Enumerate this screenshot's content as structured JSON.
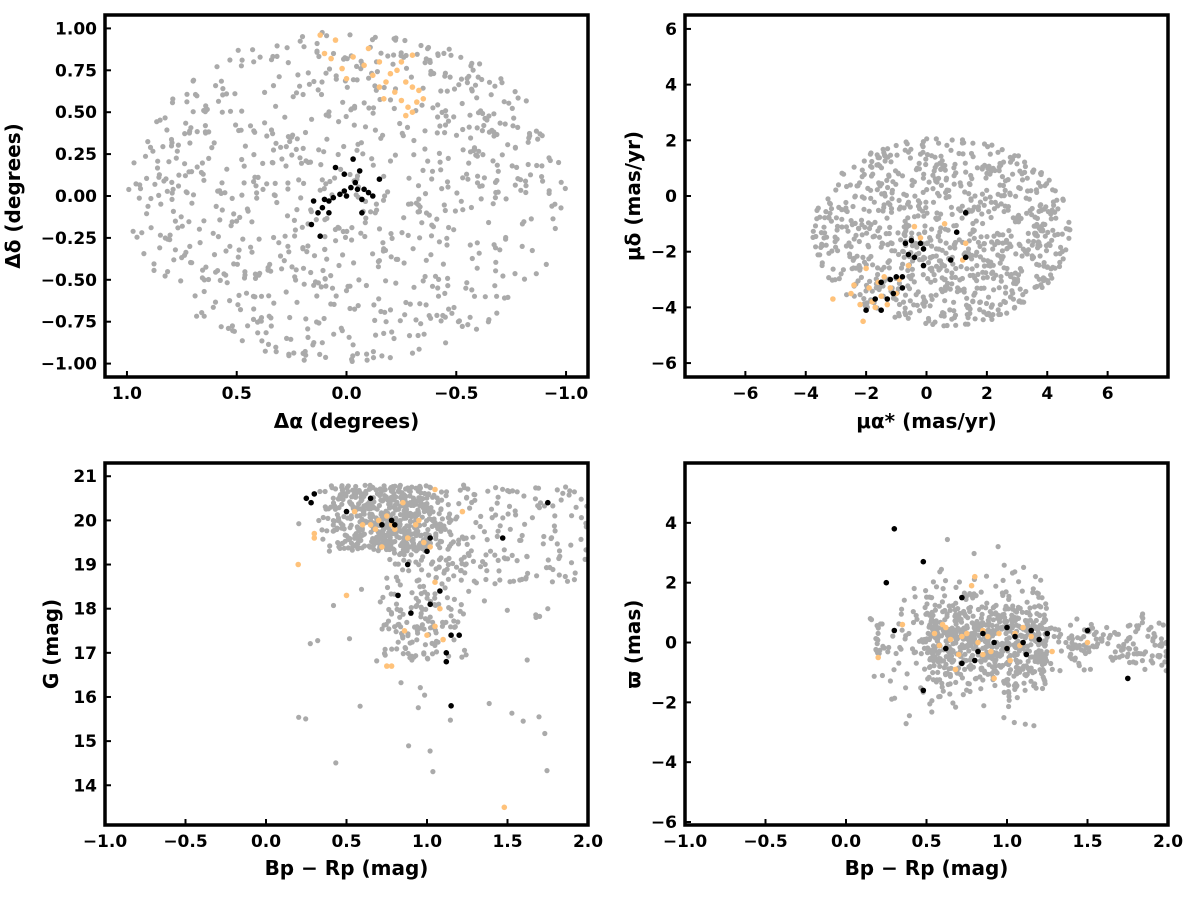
{
  "colors": {
    "background": "#aaaaaa",
    "highlight_orange": "#ffc27a",
    "highlight_black": "#000000",
    "frame": "#000000"
  },
  "chart_data": [
    {
      "type": "scatter",
      "xlabel": "Δα (degrees)",
      "ylabel": "Δδ (degrees)",
      "xlim": [
        1.1,
        -1.1
      ],
      "ylim": [
        -1.08,
        1.08
      ],
      "xticks": [
        1.0,
        0.5,
        0.0,
        -0.5,
        -1.0
      ],
      "xtick_labels": [
        "1.0",
        "0.5",
        "0.0",
        "−0.5",
        "−1.0"
      ],
      "yticks": [
        -1.0,
        -0.75,
        -0.5,
        -0.25,
        0.0,
        0.25,
        0.5,
        0.75,
        1.0
      ],
      "ytick_labels": [
        "−1.00",
        "−0.75",
        "−0.50",
        "−0.25",
        "0.00",
        "0.25",
        "0.50",
        "0.75",
        "1.00"
      ],
      "grid": false,
      "background_field": {
        "shape": "ellipse",
        "center": [
          0.0,
          0.0
        ],
        "radius_x": 1.0,
        "radius_y": 1.0,
        "count": 850
      },
      "series": [
        {
          "color": "#ffc27a",
          "points": [
            [
              0.12,
              0.96
            ],
            [
              0.05,
              0.93
            ],
            [
              0.1,
              0.85
            ],
            [
              0.07,
              0.82
            ],
            [
              0.02,
              0.76
            ],
            [
              -0.03,
              0.83
            ],
            [
              -0.08,
              0.78
            ],
            [
              -0.12,
              0.72
            ],
            [
              -0.15,
              0.65
            ],
            [
              -0.18,
              0.68
            ],
            [
              -0.22,
              0.62
            ],
            [
              -0.25,
              0.57
            ],
            [
              -0.28,
              0.53
            ],
            [
              -0.3,
              0.5
            ],
            [
              -0.32,
              0.56
            ],
            [
              -0.27,
              0.48
            ],
            [
              -0.2,
              0.73
            ],
            [
              -0.25,
              0.8
            ],
            [
              -0.3,
              0.84
            ],
            [
              -0.23,
              0.75
            ],
            [
              -0.17,
              0.58
            ],
            [
              -0.35,
              0.58
            ],
            [
              -0.33,
              0.63
            ],
            [
              -0.3,
              0.65
            ],
            [
              -0.27,
              0.68
            ],
            [
              -0.15,
              0.8
            ],
            [
              0.0,
              0.7
            ],
            [
              -0.1,
              0.88
            ]
          ]
        },
        {
          "color": "#000000",
          "points": [
            [
              0.05,
              0.17
            ],
            [
              0.01,
              0.13
            ],
            [
              -0.03,
              0.22
            ],
            [
              -0.06,
              0.15
            ],
            [
              -0.04,
              0.08
            ],
            [
              -0.08,
              0.04
            ],
            [
              -0.1,
              0.02
            ],
            [
              -0.12,
              0.0
            ],
            [
              -0.15,
              0.1
            ],
            [
              -0.02,
              0.05
            ],
            [
              0.01,
              0.03
            ],
            [
              0.03,
              0.01
            ],
            [
              0.06,
              -0.01
            ],
            [
              0.08,
              -0.03
            ],
            [
              0.11,
              -0.07
            ],
            [
              0.13,
              -0.1
            ],
            [
              0.08,
              -0.1
            ],
            [
              0.15,
              -0.03
            ],
            [
              0.1,
              -0.02
            ],
            [
              0.16,
              -0.17
            ],
            [
              0.12,
              -0.24
            ],
            [
              -0.05,
              0.04
            ],
            [
              -0.07,
              -0.02
            ],
            [
              0.0,
              0.0
            ],
            [
              -0.07,
              -0.1
            ]
          ]
        }
      ]
    },
    {
      "type": "scatter",
      "xlabel": "μα* (mas/yr)",
      "ylabel": "μδ (mas/yr)",
      "xlim": [
        -8.0,
        8.0
      ],
      "ylim": [
        -6.5,
        6.5
      ],
      "xticks": [
        -6,
        -4,
        -2,
        0,
        2,
        4,
        6
      ],
      "xtick_labels": [
        "−6",
        "−4",
        "−2",
        "0",
        "2",
        "4",
        "6"
      ],
      "yticks": [
        -6,
        -4,
        -2,
        0,
        2,
        4,
        6
      ],
      "ytick_labels": [
        "−6",
        "−4",
        "−2",
        "0",
        "2",
        "4",
        "6"
      ],
      "grid": false,
      "background_field": {
        "shape": "ellipse",
        "center": [
          0.5,
          -1.3
        ],
        "radius_x": 4.3,
        "radius_y": 3.4,
        "count": 900
      },
      "series": [
        {
          "color": "#ffc27a",
          "points": [
            [
              -3.1,
              -3.7
            ],
            [
              -2.4,
              -3.2
            ],
            [
              -2.2,
              -3.9
            ],
            [
              -2.1,
              -4.5
            ],
            [
              -1.9,
              -3.3
            ],
            [
              -1.6,
              -3.1
            ],
            [
              -1.5,
              -3.6
            ],
            [
              -1.2,
              -3.3
            ],
            [
              -1.0,
              -3.5
            ],
            [
              -2.0,
              -2.6
            ],
            [
              -1.4,
              -2.9
            ],
            [
              -0.9,
              -3.0
            ],
            [
              -0.6,
              -2.5
            ],
            [
              -1.3,
              -3.9
            ],
            [
              -1.8,
              -3.8
            ],
            [
              -0.4,
              -1.1
            ],
            [
              -0.2,
              -1.5
            ],
            [
              0.6,
              -1.0
            ],
            [
              1.2,
              -2.3
            ],
            [
              1.3,
              -1.7
            ],
            [
              -2.5,
              -3.5
            ],
            [
              -1.7,
              -4.0
            ]
          ]
        },
        {
          "color": "#000000",
          "points": [
            [
              -2.0,
              -4.1
            ],
            [
              -1.5,
              -4.1
            ],
            [
              -1.3,
              -3.7
            ],
            [
              -1.1,
              -3.5
            ],
            [
              -1.7,
              -3.7
            ],
            [
              -1.5,
              -3.1
            ],
            [
              -1.2,
              -3.0
            ],
            [
              -1.0,
              -2.9
            ],
            [
              -0.8,
              -2.9
            ],
            [
              -0.6,
              -2.1
            ],
            [
              -0.4,
              -2.2
            ],
            [
              -0.7,
              -1.7
            ],
            [
              -0.5,
              -1.6
            ],
            [
              -0.8,
              -3.3
            ],
            [
              0.8,
              -2.3
            ],
            [
              1.3,
              -2.2
            ],
            [
              1.0,
              -1.3
            ],
            [
              1.3,
              -0.6
            ],
            [
              -0.1,
              -2.5
            ],
            [
              -0.2,
              -1.7
            ],
            [
              -0.1,
              -1.9
            ]
          ]
        }
      ]
    },
    {
      "type": "scatter",
      "xlabel": "Bp − Rp (mag)",
      "ylabel": "G (mag)",
      "xlim": [
        -1.0,
        2.0
      ],
      "ylim": [
        13.1,
        21.3
      ],
      "xticks": [
        -1.0,
        -0.5,
        0.0,
        0.5,
        1.0,
        1.5,
        2.0
      ],
      "xtick_labels": [
        "−1.0",
        "−0.5",
        "0.0",
        "0.5",
        "1.0",
        "1.5",
        "2.0"
      ],
      "yticks": [
        14,
        15,
        16,
        17,
        18,
        19,
        20,
        21
      ],
      "ytick_labels": [
        "14",
        "15",
        "16",
        "17",
        "18",
        "19",
        "20",
        "21"
      ],
      "grid": false,
      "background_field": {
        "shape": "color-magnitude",
        "count": 900
      },
      "series": [
        {
          "color": "#ffc27a",
          "points": [
            [
              0.2,
              19.0
            ],
            [
              0.3,
              19.7
            ],
            [
              0.3,
              19.6
            ],
            [
              0.5,
              18.3
            ],
            [
              0.55,
              20.2
            ],
            [
              0.6,
              19.9
            ],
            [
              0.65,
              19.9
            ],
            [
              0.68,
              19.8
            ],
            [
              0.7,
              20.0
            ],
            [
              0.75,
              20.1
            ],
            [
              0.78,
              19.9
            ],
            [
              0.8,
              19.8
            ],
            [
              0.85,
              20.4
            ],
            [
              0.88,
              19.6
            ],
            [
              0.95,
              20.0
            ],
            [
              0.98,
              19.5
            ],
            [
              1.02,
              19.4
            ],
            [
              1.05,
              18.6
            ],
            [
              1.05,
              17.6
            ],
            [
              1.1,
              17.3
            ],
            [
              1.0,
              17.4
            ],
            [
              1.05,
              20.7
            ],
            [
              1.22,
              20.2
            ],
            [
              0.78,
              16.7
            ],
            [
              0.75,
              16.7
            ],
            [
              0.86,
              17.5
            ],
            [
              1.48,
              13.5
            ],
            [
              1.08,
              18.0
            ],
            [
              0.93,
              19.9
            ],
            [
              0.72,
              19.4
            ]
          ]
        },
        {
          "color": "#000000",
          "points": [
            [
              0.25,
              20.5
            ],
            [
              0.3,
              20.6
            ],
            [
              0.28,
              20.4
            ],
            [
              0.5,
              20.2
            ],
            [
              0.65,
              20.5
            ],
            [
              0.72,
              19.9
            ],
            [
              0.78,
              20.0
            ],
            [
              0.8,
              19.9
            ],
            [
              0.82,
              18.3
            ],
            [
              0.88,
              19.0
            ],
            [
              0.9,
              17.9
            ],
            [
              1.0,
              19.3
            ],
            [
              1.02,
              19.6
            ],
            [
              1.02,
              18.1
            ],
            [
              1.08,
              18.4
            ],
            [
              1.12,
              17.0
            ],
            [
              1.12,
              16.8
            ],
            [
              1.15,
              17.4
            ],
            [
              1.2,
              17.4
            ],
            [
              1.15,
              15.8
            ],
            [
              1.47,
              19.6
            ],
            [
              1.75,
              20.4
            ]
          ]
        }
      ]
    },
    {
      "type": "scatter",
      "xlabel": "Bp − Rp (mag)",
      "ylabel": "ϖ (mas)",
      "xlim": [
        -1.0,
        2.0
      ],
      "ylim": [
        -6.1,
        6.0
      ],
      "xticks": [
        -1.0,
        -0.5,
        0.0,
        0.5,
        1.0,
        1.5,
        2.0
      ],
      "xtick_labels": [
        "−1.0",
        "−0.5",
        "0.0",
        "0.5",
        "1.0",
        "1.5",
        "2.0"
      ],
      "yticks": [
        -6,
        -4,
        -2,
        0,
        2,
        4
      ],
      "ytick_labels": [
        "−6",
        "−4",
        "−2",
        "0",
        "2",
        "4"
      ],
      "grid": false,
      "background_field": {
        "shape": "parallax",
        "count": 900
      },
      "series": [
        {
          "color": "#ffc27a",
          "points": [
            [
              0.2,
              -0.5
            ],
            [
              0.35,
              0.6
            ],
            [
              0.55,
              0.3
            ],
            [
              0.6,
              0.6
            ],
            [
              0.65,
              0.1
            ],
            [
              0.7,
              -0.4
            ],
            [
              0.72,
              0.2
            ],
            [
              0.75,
              0.3
            ],
            [
              0.78,
              1.9
            ],
            [
              0.8,
              2.2
            ],
            [
              0.82,
              0.0
            ],
            [
              0.85,
              0.4
            ],
            [
              0.88,
              0.2
            ],
            [
              0.9,
              -0.3
            ],
            [
              0.95,
              0.3
            ],
            [
              1.0,
              -0.2
            ],
            [
              1.02,
              -0.6
            ],
            [
              1.05,
              0.3
            ],
            [
              1.08,
              -0.1
            ],
            [
              1.1,
              0.5
            ],
            [
              1.15,
              0.2
            ],
            [
              0.92,
              -1.2
            ],
            [
              0.68,
              -0.9
            ],
            [
              0.62,
              0.5
            ],
            [
              1.5,
              0.0
            ],
            [
              1.28,
              -0.3
            ],
            [
              0.85,
              -0.4
            ],
            [
              0.58,
              -0.1
            ]
          ]
        },
        {
          "color": "#000000",
          "points": [
            [
              0.3,
              3.8
            ],
            [
              0.25,
              2.0
            ],
            [
              0.3,
              0.4
            ],
            [
              0.48,
              2.7
            ],
            [
              0.72,
              1.5
            ],
            [
              0.62,
              -0.2
            ],
            [
              0.72,
              -0.7
            ],
            [
              0.8,
              -0.6
            ],
            [
              0.82,
              -0.3
            ],
            [
              0.85,
              0.3
            ],
            [
              0.92,
              0.0
            ],
            [
              1.0,
              0.5
            ],
            [
              1.05,
              0.2
            ],
            [
              1.1,
              0.0
            ],
            [
              1.12,
              -0.4
            ],
            [
              1.15,
              0.4
            ],
            [
              1.2,
              0.1
            ],
            [
              1.25,
              0.3
            ],
            [
              1.5,
              0.4
            ],
            [
              1.75,
              -1.2
            ],
            [
              0.48,
              -1.6
            ],
            [
              1.0,
              -0.2
            ]
          ]
        }
      ]
    }
  ]
}
